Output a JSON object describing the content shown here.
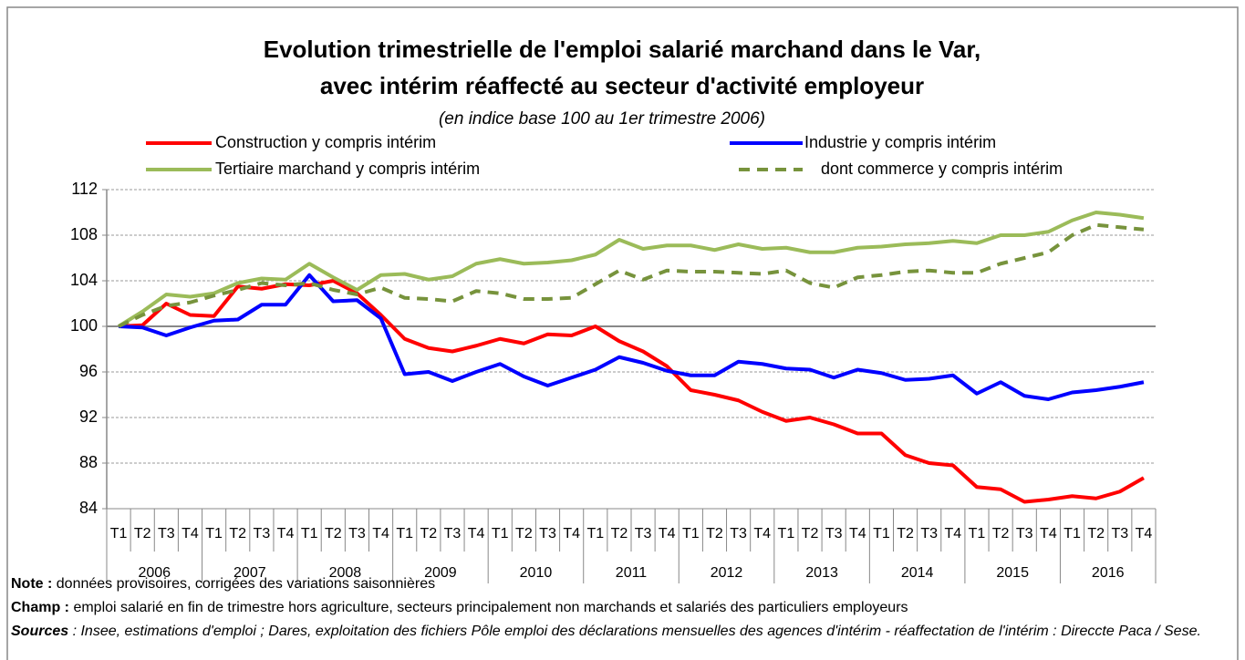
{
  "chart_data": {
    "type": "line",
    "title": [
      "Evolution trimestrielle de l'emploi salarié marchand dans le Var,",
      "avec intérim réaffecté au secteur d'activité employeur"
    ],
    "subtitle": "(en indice base 100 au 1er trimestre 2006)",
    "categories": [
      "T1",
      "T2",
      "T3",
      "T4",
      "T1",
      "T2",
      "T3",
      "T4",
      "T1",
      "T2",
      "T3",
      "T4",
      "T1",
      "T2",
      "T3",
      "T4",
      "T1",
      "T2",
      "T3",
      "T4",
      "T1",
      "T2",
      "T3",
      "T4",
      "T1",
      "T2",
      "T3",
      "T4",
      "T1",
      "T2",
      "T3",
      "T4",
      "T1",
      "T2",
      "T3",
      "T4",
      "T1",
      "T2",
      "T3",
      "T4",
      "T1",
      "T2",
      "T3",
      "T4"
    ],
    "years": [
      "2006",
      "2007",
      "2008",
      "2009",
      "2010",
      "2011",
      "2012",
      "2013",
      "2014",
      "2015",
      "2016"
    ],
    "ylim": [
      84,
      112
    ],
    "yticks": [
      84,
      88,
      92,
      96,
      100,
      104,
      108,
      112
    ],
    "x_axis_at": 100,
    "grid": true,
    "series": [
      {
        "name": "Construction y compris intérim",
        "color": "#ff0000",
        "dash": false,
        "values": [
          100,
          100.1,
          102,
          101,
          100.9,
          103.5,
          103.3,
          103.7,
          103.6,
          104,
          102.9,
          101,
          98.9,
          98.1,
          97.8,
          98.3,
          98.9,
          98.5,
          99.3,
          99.2,
          100,
          98.7,
          97.8,
          96.5,
          94.4,
          94,
          93.5,
          92.5,
          91.7,
          92,
          91.4,
          90.6,
          90.6,
          88.7,
          88,
          87.8,
          85.9,
          85.7,
          84.6,
          84.8,
          85.1,
          84.9,
          85.5,
          86.7
        ]
      },
      {
        "name": "Industrie y compris intérim",
        "color": "#0000ff",
        "dash": false,
        "values": [
          100,
          99.9,
          99.2,
          99.9,
          100.5,
          100.6,
          101.9,
          101.9,
          104.5,
          102.2,
          102.3,
          100.7,
          95.8,
          96,
          95.2,
          96,
          96.7,
          95.6,
          94.8,
          95.5,
          96.2,
          97.3,
          96.8,
          96.1,
          95.7,
          95.7,
          96.9,
          96.7,
          96.3,
          96.2,
          95.5,
          96.2,
          95.9,
          95.3,
          95.4,
          95.7,
          94.1,
          95.1,
          93.9,
          93.6,
          94.2,
          94.4,
          94.7,
          95.1
        ]
      },
      {
        "name": "Tertiaire marchand y compris intérim",
        "color": "#9bbb59",
        "dash": false,
        "values": [
          100,
          101.3,
          102.8,
          102.6,
          102.9,
          103.8,
          104.2,
          104.1,
          105.5,
          104.3,
          103.2,
          104.5,
          104.6,
          104.1,
          104.4,
          105.5,
          105.9,
          105.5,
          105.6,
          105.8,
          106.3,
          107.6,
          106.8,
          107.1,
          107.1,
          106.7,
          107.2,
          106.8,
          106.9,
          106.5,
          106.5,
          106.9,
          107,
          107.2,
          107.3,
          107.5,
          107.3,
          108,
          108,
          108.3,
          109.3,
          110,
          109.8,
          109.5
        ]
      },
      {
        "name": "dont commerce y compris intérim",
        "color": "#77933c",
        "dash": true,
        "values": [
          100,
          101,
          101.8,
          102.1,
          102.7,
          103.2,
          103.8,
          103.6,
          103.8,
          103.2,
          102.8,
          103.4,
          102.5,
          102.4,
          102.2,
          103.1,
          102.9,
          102.4,
          102.4,
          102.5,
          103.7,
          104.9,
          104.1,
          104.9,
          104.8,
          104.8,
          104.7,
          104.6,
          104.9,
          103.8,
          103.4,
          104.3,
          104.5,
          104.8,
          104.9,
          104.7,
          104.7,
          105.5,
          106,
          106.5,
          108,
          108.9,
          108.7,
          108.5
        ]
      }
    ],
    "notes": [
      {
        "label": "Note :",
        "text": " données provisoires, corrigées des variations saisonnières"
      },
      {
        "label": "Champ :",
        "text": " emploi salarié en fin de trimestre hors agriculture, secteurs principalement non marchands et salariés des particuliers employeurs"
      },
      {
        "label": "Sources",
        "text": " : Insee, estimations d'emploi ; Dares, exploitation des fichiers Pôle emploi des déclarations mensuelles des agences d'intérim -  réaffectation de l'intérim : Direccte Paca / Sese."
      }
    ]
  }
}
